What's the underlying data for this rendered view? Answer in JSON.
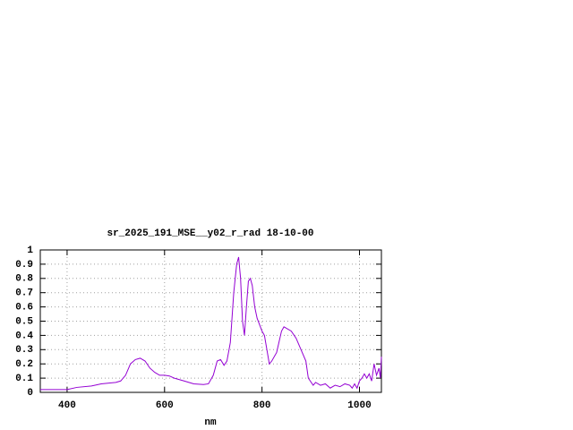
{
  "chart_data": {
    "type": "line",
    "title": "sr_2025_191_MSE__y02_r_rad 18-10-00",
    "x_label": "nm",
    "x": [
      345,
      360,
      400,
      420,
      450,
      470,
      500,
      510,
      520,
      530,
      540,
      550,
      560,
      570,
      580,
      590,
      600,
      610,
      620,
      640,
      660,
      680,
      690,
      700,
      708,
      715,
      722,
      728,
      735,
      742,
      748,
      752,
      756,
      760,
      764,
      768,
      772,
      776,
      780,
      785,
      790,
      800,
      805,
      810,
      815,
      820,
      830,
      840,
      845,
      860,
      870,
      880,
      890,
      895,
      905,
      910,
      920,
      930,
      940,
      950,
      960,
      970,
      980,
      985,
      990,
      995,
      1000,
      1005,
      1010,
      1015,
      1020,
      1025,
      1030,
      1035,
      1040,
      1043,
      1045
    ],
    "series": [
      {
        "color": "#9400d3",
        "values": [
          0.02,
          0.02,
          0.02,
          0.035,
          0.045,
          0.06,
          0.07,
          0.08,
          0.12,
          0.2,
          0.23,
          0.24,
          0.22,
          0.17,
          0.14,
          0.12,
          0.12,
          0.115,
          0.1,
          0.08,
          0.06,
          0.055,
          0.06,
          0.12,
          0.22,
          0.23,
          0.19,
          0.22,
          0.35,
          0.7,
          0.9,
          0.95,
          0.8,
          0.5,
          0.4,
          0.6,
          0.78,
          0.8,
          0.75,
          0.6,
          0.52,
          0.43,
          0.4,
          0.3,
          0.2,
          0.22,
          0.28,
          0.43,
          0.46,
          0.43,
          0.38,
          0.3,
          0.22,
          0.1,
          0.05,
          0.07,
          0.05,
          0.06,
          0.03,
          0.05,
          0.04,
          0.06,
          0.05,
          0.03,
          0.06,
          0.03,
          0.08,
          0.1,
          0.13,
          0.1,
          0.13,
          0.08,
          0.2,
          0.12,
          0.17,
          0.1,
          0.25
        ]
      }
    ],
    "xlim": [
      345,
      1045
    ],
    "xticks": [
      400,
      600,
      800,
      1000
    ],
    "ylim": [
      0,
      1
    ],
    "yticks": [
      0,
      0.1,
      0.2,
      0.3,
      0.4,
      0.5,
      0.6,
      0.7,
      0.8,
      0.9,
      1
    ],
    "grid": true
  }
}
